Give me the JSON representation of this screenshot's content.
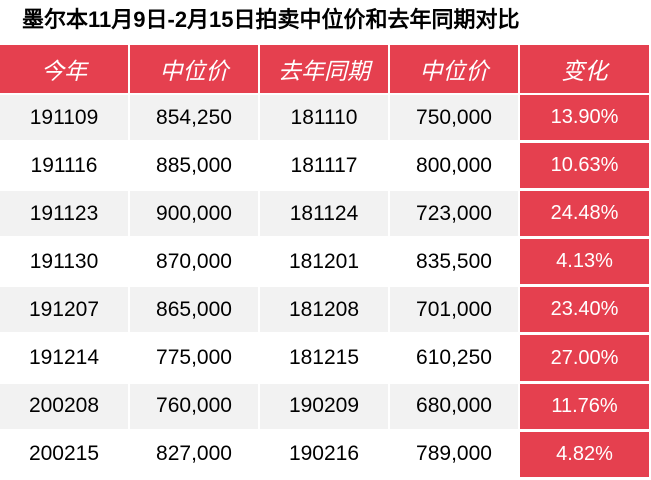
{
  "title": "墨尔本11月9日-2月15日拍卖中位价和去年同期对比",
  "colors": {
    "accent": "#e5404f",
    "stripe": "#f2f2f2"
  },
  "chart_data": {
    "type": "table",
    "title": "墨尔本11月9日-2月15日拍卖中位价和去年同期对比",
    "columns": [
      "今年",
      "中位价",
      "去年同期",
      "中位价",
      "变化"
    ],
    "rows": [
      [
        "191109",
        "854,250",
        "181110",
        "750,000",
        "13.90%"
      ],
      [
        "191116",
        "885,000",
        "181117",
        "800,000",
        "10.63%"
      ],
      [
        "191123",
        "900,000",
        "181124",
        "723,000",
        "24.48%"
      ],
      [
        "191130",
        "870,000",
        "181201",
        "835,500",
        "4.13%"
      ],
      [
        "191207",
        "865,000",
        "181208",
        "701,000",
        "23.40%"
      ],
      [
        "191214",
        "775,000",
        "181215",
        "610,250",
        "27.00%"
      ],
      [
        "200208",
        "760,000",
        "190209",
        "680,000",
        "11.76%"
      ],
      [
        "200215",
        "827,000",
        "190216",
        "789,000",
        "4.82%"
      ]
    ]
  }
}
